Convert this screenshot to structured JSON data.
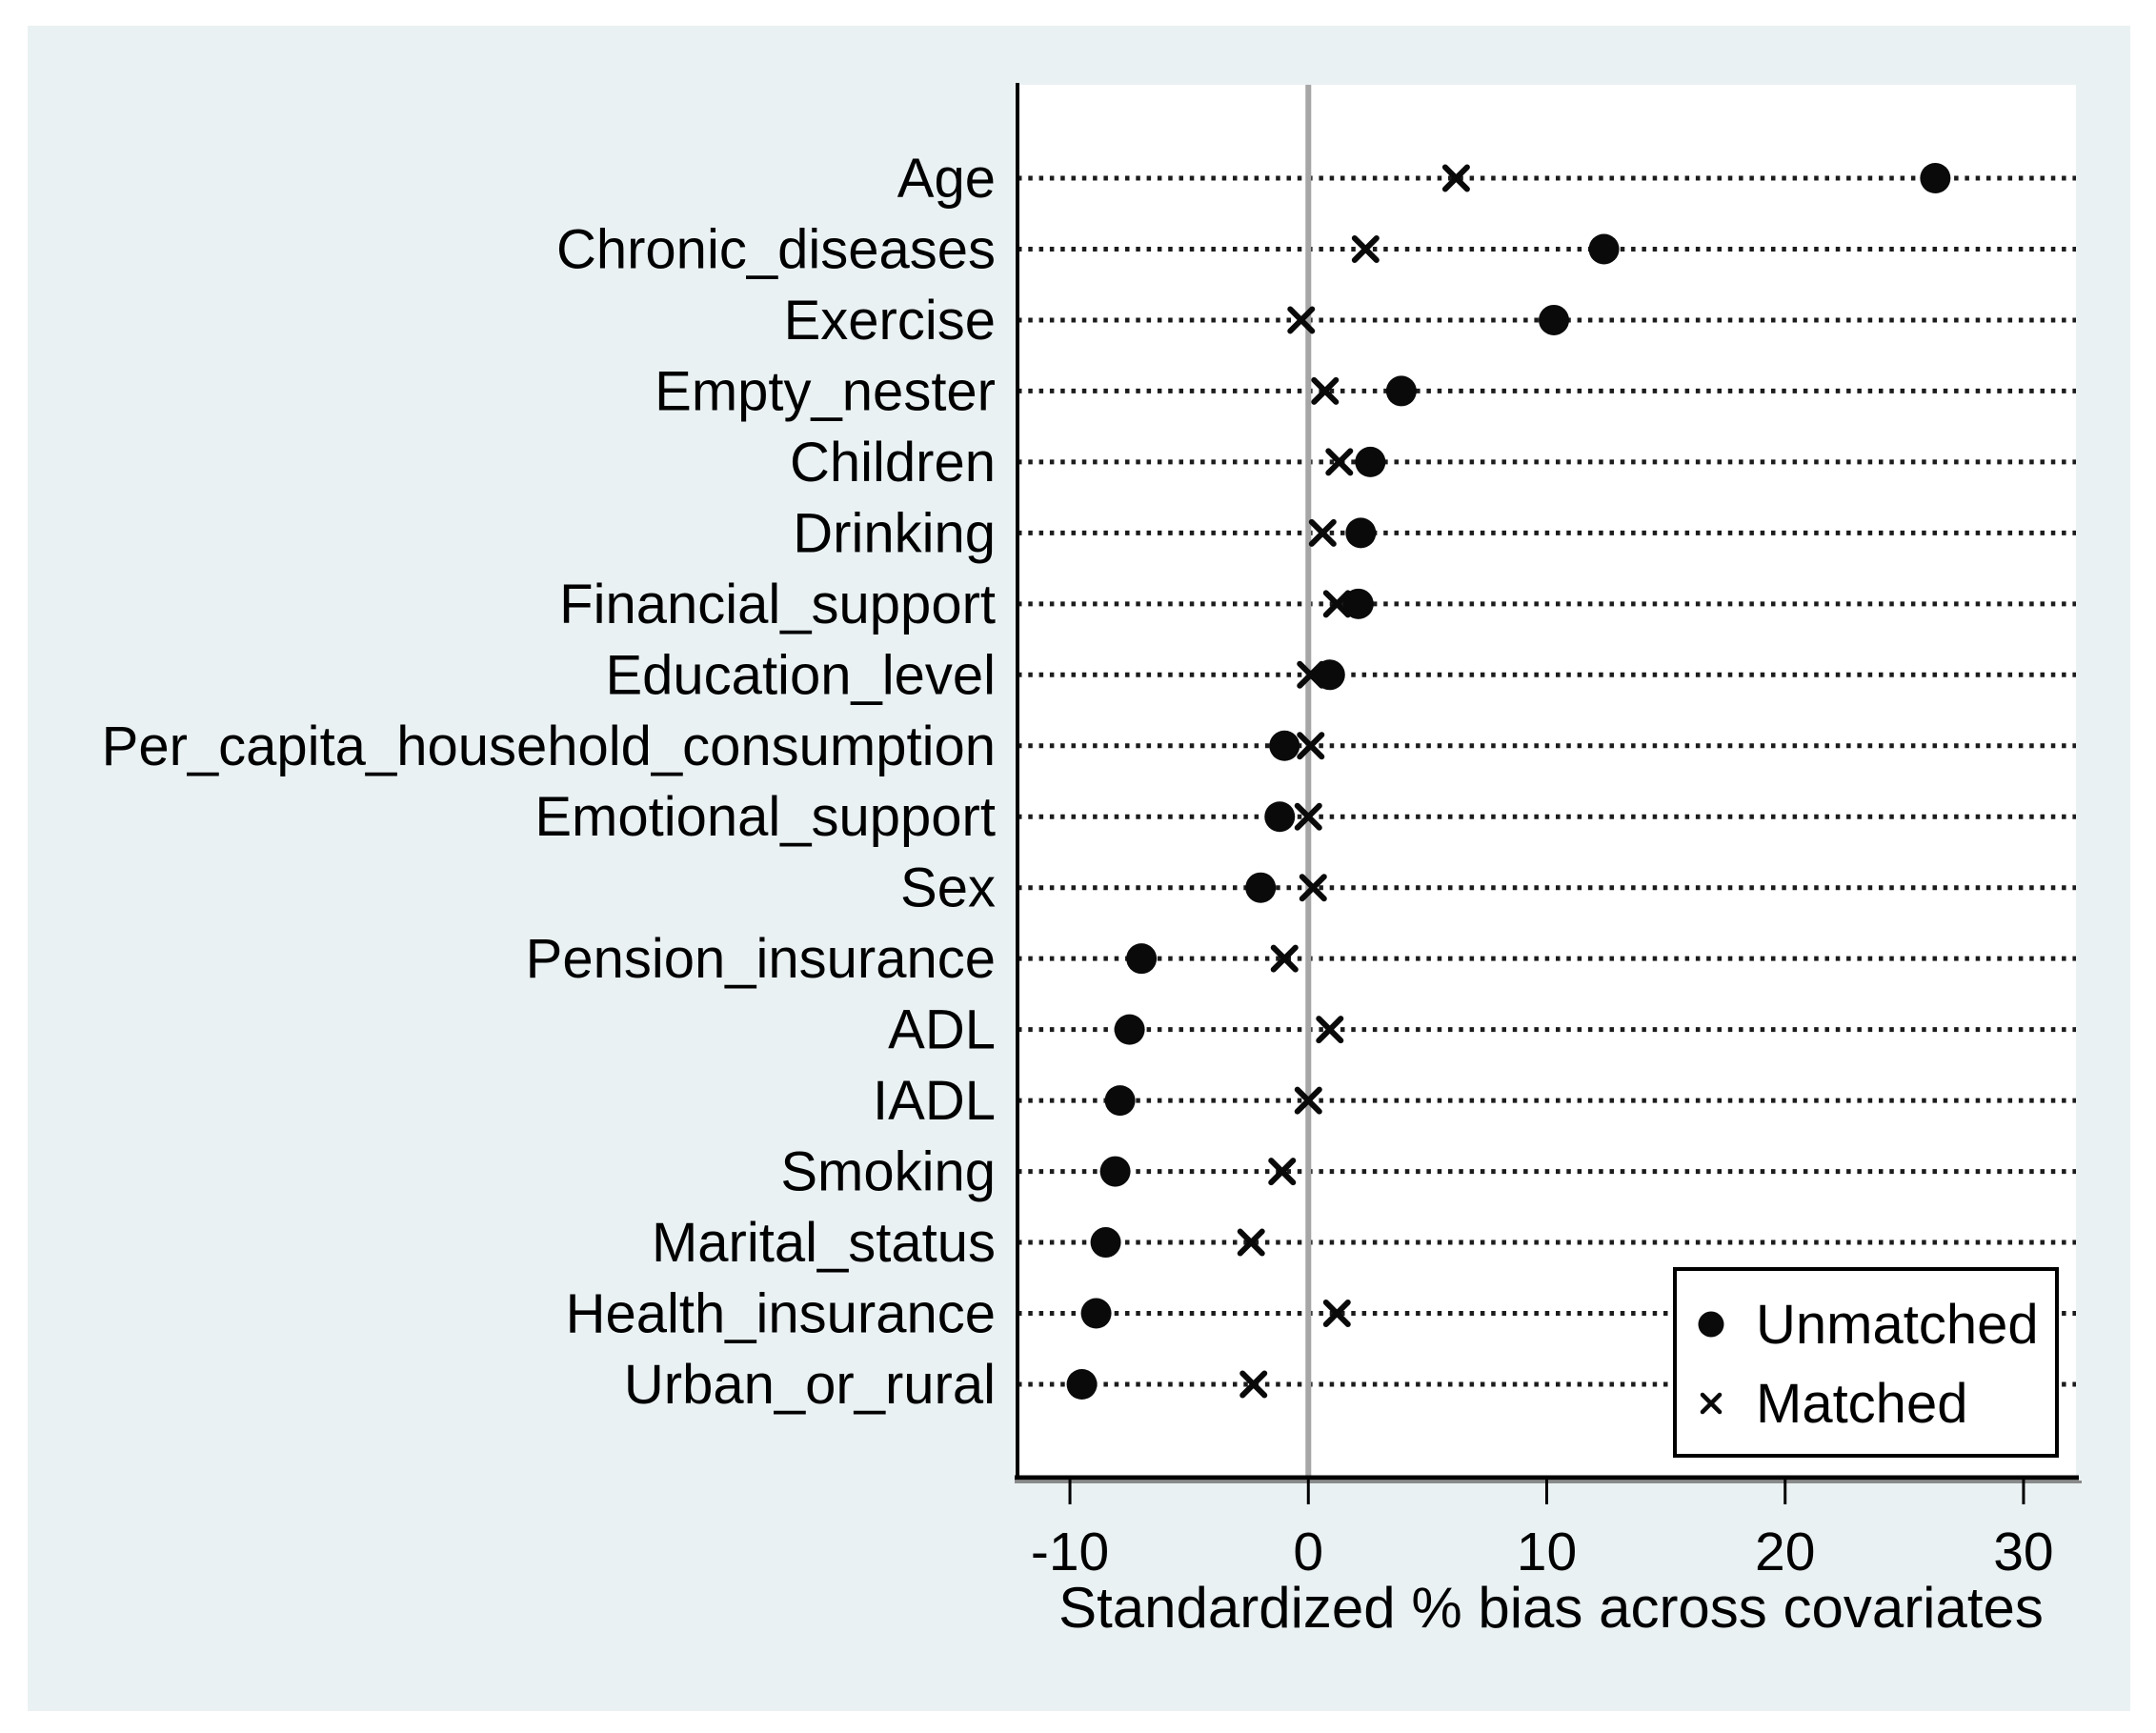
{
  "chart_data": {
    "type": "scatter",
    "title": "",
    "xlabel": "Standardized % bias across covariates",
    "x_ticks": [
      -10,
      0,
      10,
      20,
      30
    ],
    "xlim": [
      -12.2,
      32.2
    ],
    "grid": "dotted-horizontal",
    "zero_reference_line": 0,
    "legend_position": "bottom-right",
    "categories": [
      "Age",
      "Chronic_diseases",
      "Exercise",
      "Empty_nester",
      "Children",
      "Drinking",
      "Financial_support",
      "Education_level",
      "Per_capita_household_consumption",
      "Emotional_support",
      "Sex",
      "Pension_insurance",
      "ADL",
      "IADL",
      "Smoking",
      "Marital_status",
      "Health_insurance",
      "Urban_or_rural"
    ],
    "series": [
      {
        "name": "Unmatched",
        "marker": "circle",
        "values": [
          26.3,
          12.4,
          10.3,
          3.9,
          2.6,
          2.2,
          2.1,
          0.9,
          -1.0,
          -1.2,
          -2.0,
          -7.0,
          -7.5,
          -7.9,
          -8.1,
          -8.5,
          -8.9,
          -9.5
        ]
      },
      {
        "name": "Matched",
        "marker": "x",
        "values": [
          6.2,
          2.4,
          -0.3,
          0.7,
          1.3,
          0.6,
          1.2,
          0.1,
          0.1,
          0.0,
          0.2,
          -1.0,
          0.9,
          0.0,
          -1.1,
          -2.4,
          1.2,
          -2.3
        ]
      }
    ]
  },
  "colors": {
    "outer_background": "#ffffff",
    "graph_background": "#eaf1f3",
    "plot_background": "#ffffff",
    "marker": "#0a0a0a",
    "gridline": "#1c1c1c",
    "zero_line": "#a6a6a6",
    "axis_line": "#000000",
    "axis_shadow": "#8a8a8a",
    "text": "#000000",
    "legend_background": "#ffffff",
    "legend_border": "#000000"
  }
}
